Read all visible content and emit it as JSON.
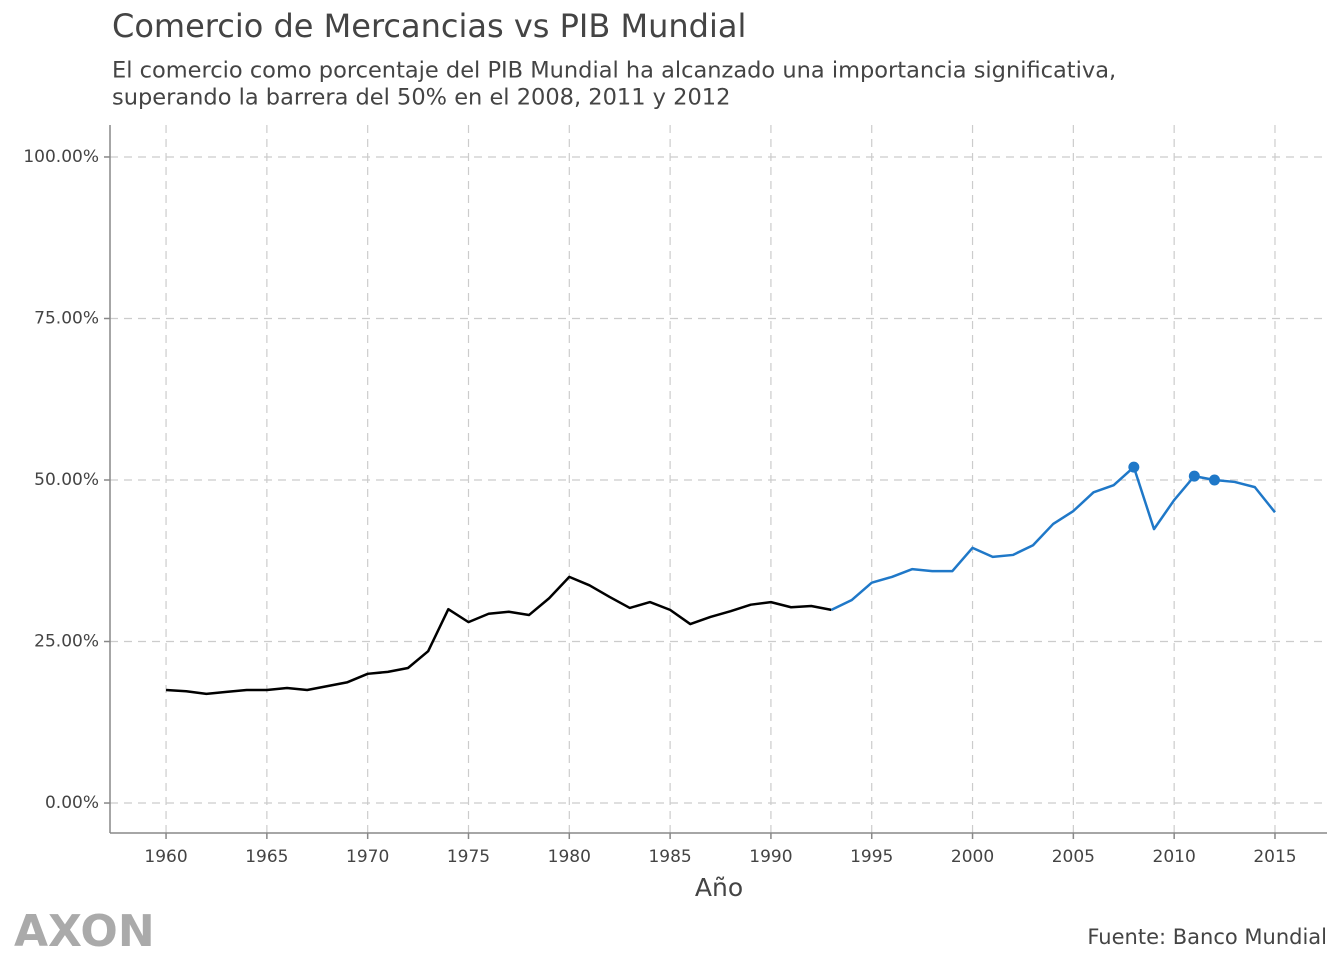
{
  "chart_data": {
    "type": "line",
    "title": "Comercio de Mercancias vs PIB Mundial",
    "subtitle": [
      "El comercio como porcentaje del PIB Mundial ha alcanzado una importancia significativa,",
      "superando la barrera del 50% en el 2008, 2011 y 2012"
    ],
    "x_label": "Año",
    "source": "Fuente: Banco Mundial",
    "logo": "AXON",
    "xlim": [
      1957.22,
      2017.58
    ],
    "ylim": [
      -4.64,
      104.95
    ],
    "xticks": [
      1960,
      1965,
      1970,
      1975,
      1980,
      1985,
      1990,
      1995,
      2000,
      2005,
      2010,
      2015
    ],
    "yticks": [
      {
        "value": 0,
        "label": "0.00%"
      },
      {
        "value": 25,
        "label": "25.00%"
      },
      {
        "value": 50,
        "label": "50.00%"
      },
      {
        "value": 75,
        "label": "75.00%"
      },
      {
        "value": 100,
        "label": "100.00%"
      }
    ],
    "grid": true,
    "series": [
      {
        "color": "#000000",
        "x": [
          1960,
          1961,
          1962,
          1963,
          1964,
          1965,
          1966,
          1967,
          1968,
          1969,
          1970,
          1971,
          1972,
          1973,
          1974,
          1975,
          1976,
          1977,
          1978,
          1979,
          1980,
          1981,
          1982,
          1983,
          1984,
          1985,
          1986,
          1987,
          1988,
          1989,
          1990,
          1991,
          1992,
          1993
        ],
        "values": [
          17.5,
          17.3,
          16.9,
          17.2,
          17.5,
          17.5,
          17.8,
          17.5,
          18.1,
          18.7,
          20.0,
          20.3,
          20.9,
          23.5,
          30.0,
          28.0,
          29.3,
          29.6,
          29.1,
          31.7,
          35.0,
          33.7,
          31.9,
          30.2,
          31.1,
          29.9,
          27.7,
          28.8,
          29.7,
          30.7,
          31.1,
          30.3,
          30.5,
          29.9
        ]
      },
      {
        "color": "#1f78c8",
        "x": [
          1993,
          1994,
          1995,
          1996,
          1997,
          1998,
          1999,
          2000,
          2001,
          2002,
          2003,
          2004,
          2005,
          2006,
          2007,
          2008,
          2009,
          2010,
          2011,
          2012,
          2013,
          2014,
          2015
        ],
        "values": [
          29.9,
          31.4,
          34.1,
          35.0,
          36.2,
          35.9,
          35.9,
          39.5,
          38.1,
          38.4,
          39.9,
          43.2,
          45.2,
          48.1,
          49.2,
          52.0,
          42.4,
          46.9,
          50.6,
          50.0,
          49.7,
          48.9,
          45.0
        ]
      }
    ],
    "points": {
      "color": "#1f78c8",
      "x": [
        2008,
        2011,
        2012
      ],
      "values": [
        52.0,
        50.6,
        50.0
      ]
    }
  }
}
